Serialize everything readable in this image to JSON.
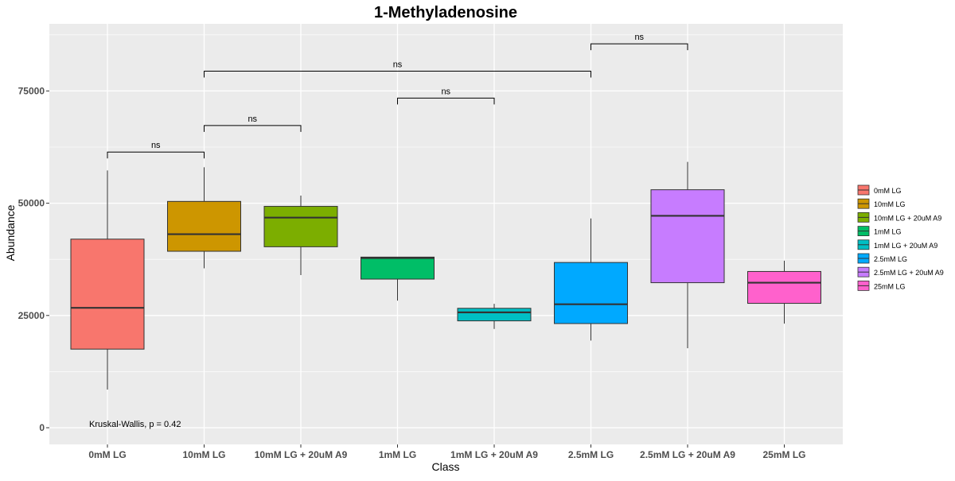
{
  "chart_data": {
    "type": "boxplot",
    "title": "1-Methyladenosine",
    "xlabel": "Class",
    "ylabel": "Abundance",
    "ylim": [
      -1500,
      90000
    ],
    "yticks": [
      0,
      25000,
      50000,
      75000
    ],
    "categories": [
      "0mM LG",
      "10mM LG",
      "10mM LG + 20uM A9",
      "1mM LG",
      "1mM LG + 20uM A9",
      "2.5mM LG",
      "2.5mM LG + 20uM A9",
      "25mM LG"
    ],
    "colors": [
      "#F8766D",
      "#CD9600",
      "#7CAE00",
      "#00BE67",
      "#00BFC4",
      "#00A9FF",
      "#C77CFF",
      "#FF61CC"
    ],
    "boxes": [
      {
        "class": "0mM LG",
        "whisker_low": 8500,
        "q1": 17500,
        "median": 26700,
        "q3": 42000,
        "whisker_high": 57300
      },
      {
        "class": "10mM LG",
        "whisker_low": 35500,
        "q1": 39300,
        "median": 43100,
        "q3": 50400,
        "whisker_high": 58000
      },
      {
        "class": "10mM LG + 20uM A9",
        "whisker_low": 34000,
        "q1": 40300,
        "median": 46800,
        "q3": 49300,
        "whisker_high": 51700
      },
      {
        "class": "1mM LG",
        "whisker_low": 28300,
        "q1": 33100,
        "median": 37800,
        "q3": 38000,
        "whisker_high": 38000
      },
      {
        "class": "1mM LG + 20uM A9",
        "whisker_low": 22000,
        "q1": 23800,
        "median": 25700,
        "q3": 26600,
        "whisker_high": 27600
      },
      {
        "class": "2.5mM LG",
        "whisker_low": 19400,
        "q1": 23200,
        "median": 27500,
        "q3": 36800,
        "whisker_high": 46600
      },
      {
        "class": "2.5mM LG + 20uM A9",
        "whisker_low": 17700,
        "q1": 32300,
        "median": 47200,
        "q3": 53000,
        "whisker_high": 59200
      },
      {
        "class": "25mM LG",
        "whisker_low": 23200,
        "q1": 27700,
        "median": 32300,
        "q3": 34800,
        "whisker_high": 37200
      }
    ],
    "comparisons": [
      {
        "from": 0,
        "to": 1,
        "y": 61400,
        "label": "ns"
      },
      {
        "from": 1,
        "to": 2,
        "y": 67300,
        "label": "ns"
      },
      {
        "from": 3,
        "to": 4,
        "y": 73400,
        "label": "ns"
      },
      {
        "from": 1,
        "to": 5,
        "y": 79400,
        "label": "ns"
      },
      {
        "from": 5,
        "to": 6,
        "y": 85500,
        "label": "ns"
      }
    ],
    "annotation": "Kruskal-Wallis, p = 0.42",
    "legend": {
      "placement": "right",
      "entries": [
        "0mM LG",
        "10mM LG",
        "10mM LG + 20uM A9",
        "1mM LG",
        "1mM LG + 20uM A9",
        "2.5mM LG",
        "2.5mM LG + 20uM A9",
        "25mM LG"
      ]
    },
    "grid": true,
    "panel_background": "#EBEBEB"
  }
}
